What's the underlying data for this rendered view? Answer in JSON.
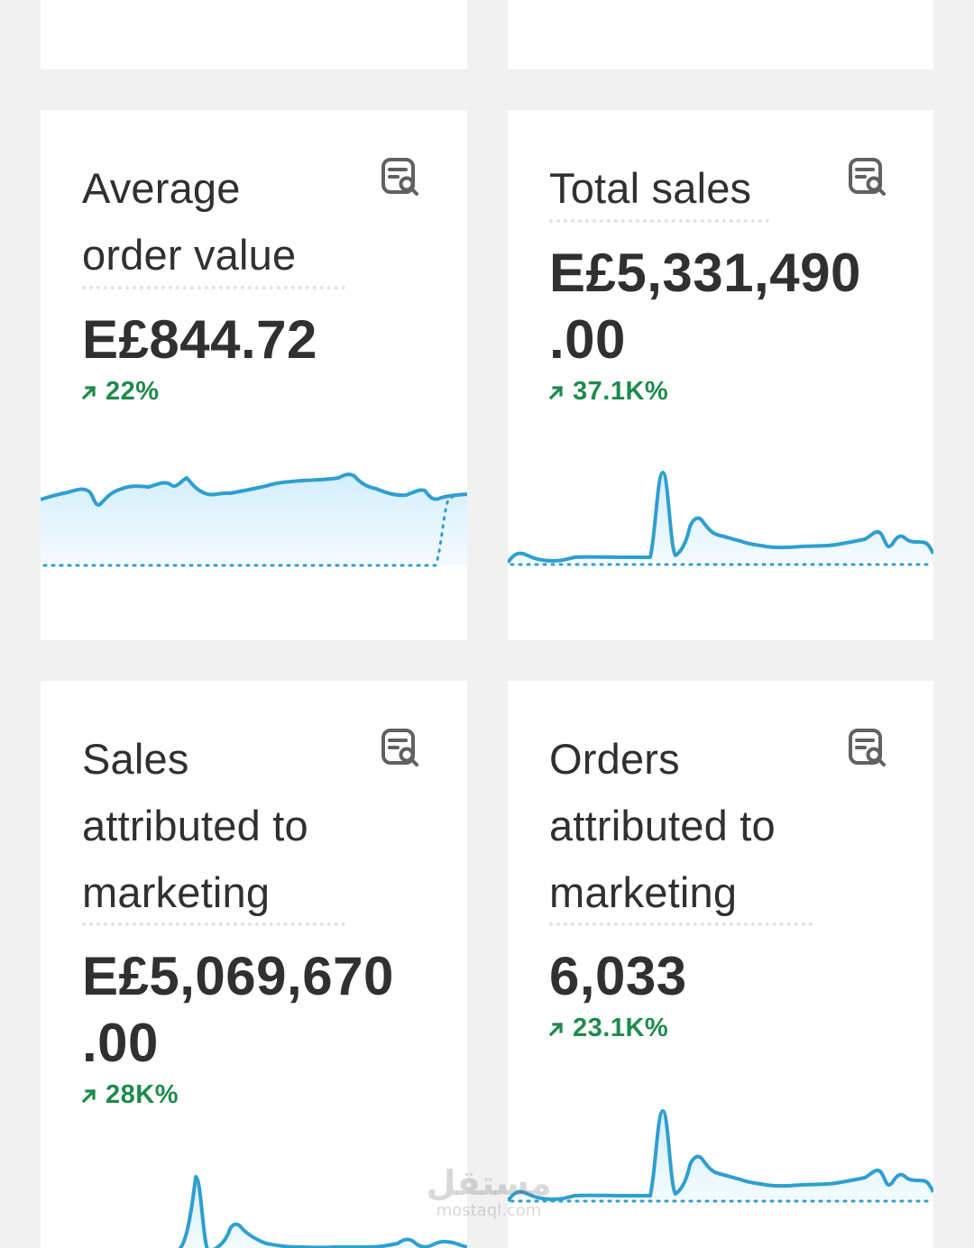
{
  "cards": [
    {
      "title_lines": [
        "Average",
        "order value"
      ],
      "value_lines": [
        "E£844.72"
      ],
      "delta": "22%",
      "delta_color": "#1f8a4c",
      "icon": "report-search-icon"
    },
    {
      "title_lines": [
        "Total sales"
      ],
      "value_lines": [
        "E£5,331,490",
        ".00"
      ],
      "delta": "37.1K%",
      "delta_color": "#1f8a4c",
      "icon": "report-search-icon"
    },
    {
      "title_lines": [
        "Sales",
        "attributed to",
        "marketing"
      ],
      "value_lines": [
        "E£5,069,670",
        ".00"
      ],
      "delta": "28K%",
      "delta_color": "#1f8a4c",
      "icon": "report-search-icon"
    },
    {
      "title_lines": [
        "Orders",
        "attributed to",
        "marketing"
      ],
      "value_lines": [
        "6,033"
      ],
      "delta": "23.1K%",
      "delta_color": "#1f8a4c",
      "icon": "report-search-icon"
    }
  ],
  "colors": {
    "line": "#2e9fd1",
    "fill": "#dff1fb",
    "comparison": "#2e9fd1",
    "positive": "#1f8a4c",
    "background": "#f1f1f1",
    "card": "#ffffff"
  },
  "watermark": {
    "arabic": "مستقل",
    "latin": "mostaql.com"
  }
}
